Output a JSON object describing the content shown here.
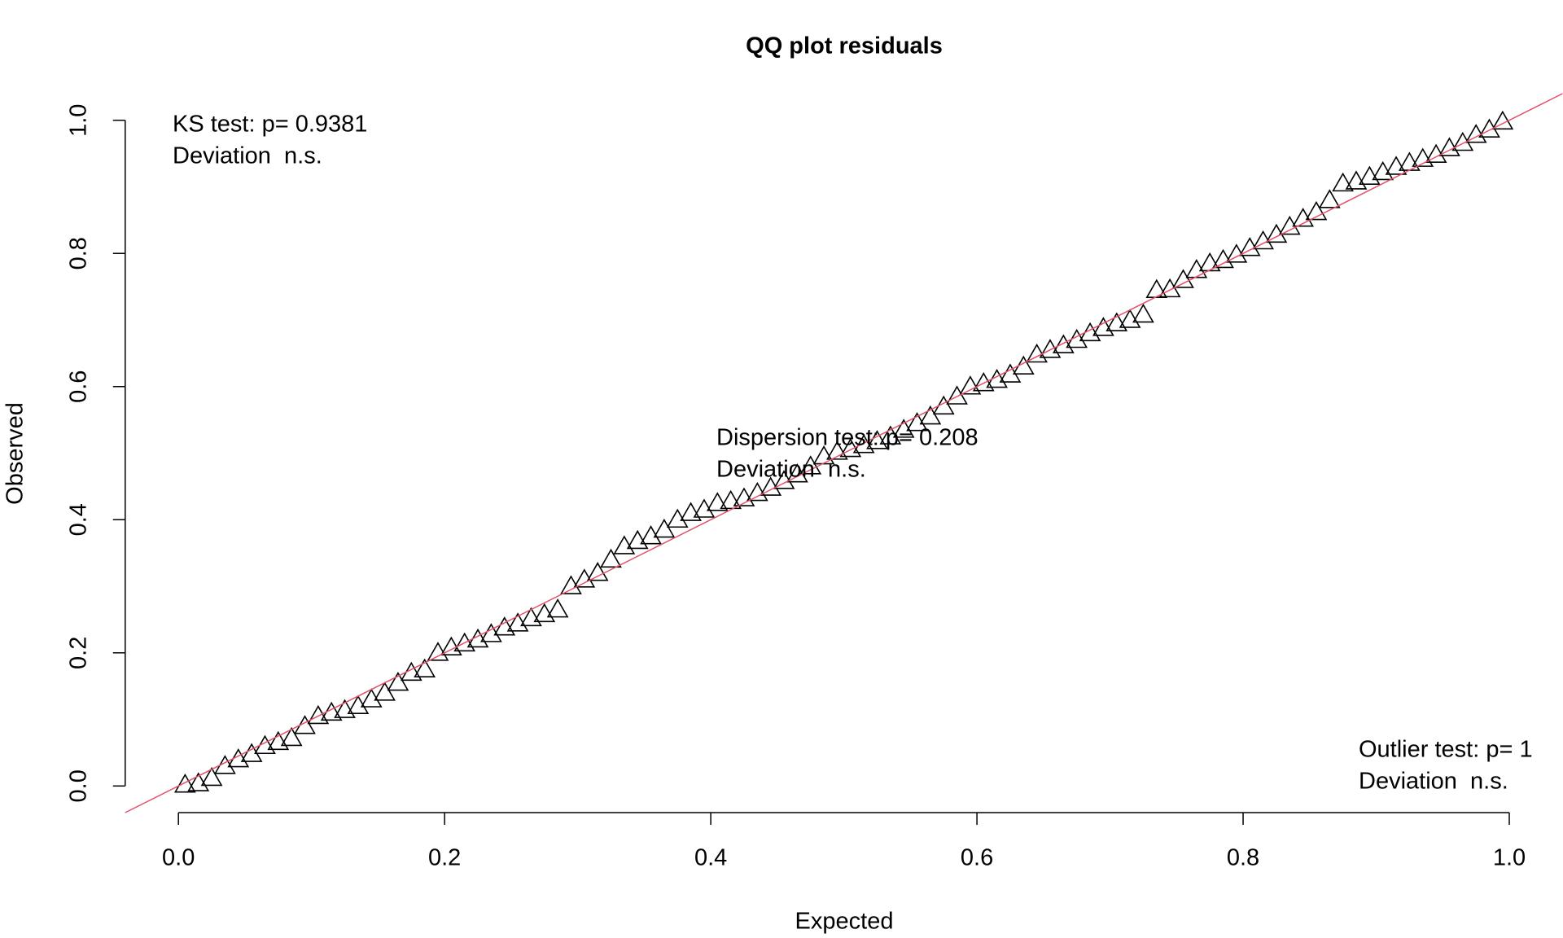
{
  "chart_data": {
    "type": "scatter",
    "title": "QQ plot residuals",
    "x_label": "Expected",
    "y_label": "Observed",
    "xlim": [
      -0.04,
      1.04
    ],
    "ylim": [
      -0.04,
      1.04
    ],
    "xticks": [
      {
        "value": 0,
        "label": "0.0"
      },
      0.2,
      0.4,
      0.6,
      0.8,
      {
        "value": 1,
        "label": "1.0"
      }
    ],
    "yticks": [
      {
        "value": 0,
        "label": "0.0"
      },
      0.2,
      0.4,
      0.6,
      0.8,
      {
        "value": 1,
        "label": "1.0"
      }
    ],
    "color": "#000000",
    "marker": "triangle",
    "reference_line": {
      "intercept": 0,
      "slope": 1,
      "color": "#DF536B"
    },
    "annotations": [
      {
        "lines": [
          "KS test: p= 0.9381",
          "Deviation  n.s."
        ]
      },
      {
        "lines": [
          "Dispersion test: p= 0.208",
          "Deviation  n.s."
        ]
      },
      {
        "lines": [
          "Outlier test: p= 1",
          "Deviation  n.s."
        ]
      }
    ],
    "x": [
      0.005,
      0.015,
      0.025,
      0.035,
      0.045,
      0.055,
      0.065,
      0.075,
      0.085,
      0.095,
      0.105,
      0.115,
      0.125,
      0.135,
      0.145,
      0.155,
      0.165,
      0.175,
      0.185,
      0.195,
      0.205,
      0.215,
      0.225,
      0.235,
      0.245,
      0.255,
      0.265,
      0.275,
      0.285,
      0.295,
      0.305,
      0.315,
      0.325,
      0.335,
      0.345,
      0.355,
      0.365,
      0.375,
      0.385,
      0.395,
      0.405,
      0.415,
      0.425,
      0.435,
      0.445,
      0.455,
      0.465,
      0.475,
      0.485,
      0.495,
      0.505,
      0.515,
      0.525,
      0.535,
      0.545,
      0.555,
      0.565,
      0.575,
      0.585,
      0.595,
      0.605,
      0.615,
      0.625,
      0.635,
      0.645,
      0.655,
      0.665,
      0.675,
      0.685,
      0.695,
      0.705,
      0.715,
      0.725,
      0.735,
      0.745,
      0.755,
      0.765,
      0.775,
      0.785,
      0.795,
      0.805,
      0.815,
      0.825,
      0.835,
      0.845,
      0.855,
      0.865,
      0.875,
      0.885,
      0.895,
      0.905,
      0.915,
      0.925,
      0.935,
      0.945,
      0.955,
      0.965,
      0.975,
      0.985,
      0.995
    ],
    "values": [
      0.002,
      0.004,
      0.012,
      0.03,
      0.04,
      0.048,
      0.06,
      0.066,
      0.072,
      0.09,
      0.105,
      0.11,
      0.114,
      0.12,
      0.13,
      0.14,
      0.155,
      0.17,
      0.175,
      0.2,
      0.208,
      0.214,
      0.22,
      0.228,
      0.238,
      0.244,
      0.252,
      0.258,
      0.265,
      0.3,
      0.31,
      0.32,
      0.34,
      0.36,
      0.368,
      0.375,
      0.385,
      0.4,
      0.41,
      0.415,
      0.425,
      0.428,
      0.432,
      0.44,
      0.448,
      0.458,
      0.468,
      0.48,
      0.495,
      0.502,
      0.506,
      0.512,
      0.518,
      0.525,
      0.535,
      0.545,
      0.555,
      0.57,
      0.585,
      0.6,
      0.605,
      0.61,
      0.618,
      0.63,
      0.648,
      0.655,
      0.662,
      0.67,
      0.68,
      0.688,
      0.695,
      0.7,
      0.708,
      0.745,
      0.746,
      0.76,
      0.775,
      0.785,
      0.79,
      0.798,
      0.808,
      0.818,
      0.828,
      0.84,
      0.852,
      0.862,
      0.88,
      0.905,
      0.908,
      0.915,
      0.922,
      0.93,
      0.936,
      0.942,
      0.948,
      0.958,
      0.966,
      0.978,
      0.986,
      0.998
    ]
  }
}
